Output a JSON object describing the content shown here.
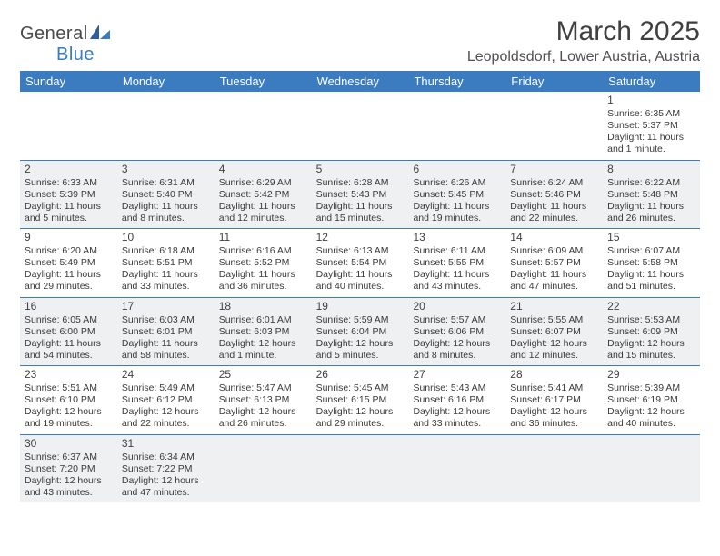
{
  "logo": {
    "text1": "General",
    "text2": "Blue"
  },
  "title": "March 2025",
  "location": "Leopoldsdorf, Lower Austria, Austria",
  "colors": {
    "header_bg": "#3b7bbf",
    "header_text": "#ffffff",
    "shaded_bg": "#eef0f2",
    "rule": "#3b7bbf",
    "text": "#3a3a3a"
  },
  "day_headers": [
    "Sunday",
    "Monday",
    "Tuesday",
    "Wednesday",
    "Thursday",
    "Friday",
    "Saturday"
  ],
  "weeks": [
    [
      {
        "empty": true,
        "shaded": false
      },
      {
        "empty": true,
        "shaded": false
      },
      {
        "empty": true,
        "shaded": false
      },
      {
        "empty": true,
        "shaded": false
      },
      {
        "empty": true,
        "shaded": false
      },
      {
        "empty": true,
        "shaded": false
      },
      {
        "day": "1",
        "shaded": false,
        "sunrise": "Sunrise: 6:35 AM",
        "sunset": "Sunset: 5:37 PM",
        "daylight": "Daylight: 11 hours and 1 minute."
      }
    ],
    [
      {
        "day": "2",
        "shaded": true,
        "sunrise": "Sunrise: 6:33 AM",
        "sunset": "Sunset: 5:39 PM",
        "daylight": "Daylight: 11 hours and 5 minutes."
      },
      {
        "day": "3",
        "shaded": true,
        "sunrise": "Sunrise: 6:31 AM",
        "sunset": "Sunset: 5:40 PM",
        "daylight": "Daylight: 11 hours and 8 minutes."
      },
      {
        "day": "4",
        "shaded": true,
        "sunrise": "Sunrise: 6:29 AM",
        "sunset": "Sunset: 5:42 PM",
        "daylight": "Daylight: 11 hours and 12 minutes."
      },
      {
        "day": "5",
        "shaded": true,
        "sunrise": "Sunrise: 6:28 AM",
        "sunset": "Sunset: 5:43 PM",
        "daylight": "Daylight: 11 hours and 15 minutes."
      },
      {
        "day": "6",
        "shaded": true,
        "sunrise": "Sunrise: 6:26 AM",
        "sunset": "Sunset: 5:45 PM",
        "daylight": "Daylight: 11 hours and 19 minutes."
      },
      {
        "day": "7",
        "shaded": true,
        "sunrise": "Sunrise: 6:24 AM",
        "sunset": "Sunset: 5:46 PM",
        "daylight": "Daylight: 11 hours and 22 minutes."
      },
      {
        "day": "8",
        "shaded": true,
        "sunrise": "Sunrise: 6:22 AM",
        "sunset": "Sunset: 5:48 PM",
        "daylight": "Daylight: 11 hours and 26 minutes."
      }
    ],
    [
      {
        "day": "9",
        "shaded": false,
        "sunrise": "Sunrise: 6:20 AM",
        "sunset": "Sunset: 5:49 PM",
        "daylight": "Daylight: 11 hours and 29 minutes."
      },
      {
        "day": "10",
        "shaded": false,
        "sunrise": "Sunrise: 6:18 AM",
        "sunset": "Sunset: 5:51 PM",
        "daylight": "Daylight: 11 hours and 33 minutes."
      },
      {
        "day": "11",
        "shaded": false,
        "sunrise": "Sunrise: 6:16 AM",
        "sunset": "Sunset: 5:52 PM",
        "daylight": "Daylight: 11 hours and 36 minutes."
      },
      {
        "day": "12",
        "shaded": false,
        "sunrise": "Sunrise: 6:13 AM",
        "sunset": "Sunset: 5:54 PM",
        "daylight": "Daylight: 11 hours and 40 minutes."
      },
      {
        "day": "13",
        "shaded": false,
        "sunrise": "Sunrise: 6:11 AM",
        "sunset": "Sunset: 5:55 PM",
        "daylight": "Daylight: 11 hours and 43 minutes."
      },
      {
        "day": "14",
        "shaded": false,
        "sunrise": "Sunrise: 6:09 AM",
        "sunset": "Sunset: 5:57 PM",
        "daylight": "Daylight: 11 hours and 47 minutes."
      },
      {
        "day": "15",
        "shaded": false,
        "sunrise": "Sunrise: 6:07 AM",
        "sunset": "Sunset: 5:58 PM",
        "daylight": "Daylight: 11 hours and 51 minutes."
      }
    ],
    [
      {
        "day": "16",
        "shaded": true,
        "sunrise": "Sunrise: 6:05 AM",
        "sunset": "Sunset: 6:00 PM",
        "daylight": "Daylight: 11 hours and 54 minutes."
      },
      {
        "day": "17",
        "shaded": true,
        "sunrise": "Sunrise: 6:03 AM",
        "sunset": "Sunset: 6:01 PM",
        "daylight": "Daylight: 11 hours and 58 minutes."
      },
      {
        "day": "18",
        "shaded": true,
        "sunrise": "Sunrise: 6:01 AM",
        "sunset": "Sunset: 6:03 PM",
        "daylight": "Daylight: 12 hours and 1 minute."
      },
      {
        "day": "19",
        "shaded": true,
        "sunrise": "Sunrise: 5:59 AM",
        "sunset": "Sunset: 6:04 PM",
        "daylight": "Daylight: 12 hours and 5 minutes."
      },
      {
        "day": "20",
        "shaded": true,
        "sunrise": "Sunrise: 5:57 AM",
        "sunset": "Sunset: 6:06 PM",
        "daylight": "Daylight: 12 hours and 8 minutes."
      },
      {
        "day": "21",
        "shaded": true,
        "sunrise": "Sunrise: 5:55 AM",
        "sunset": "Sunset: 6:07 PM",
        "daylight": "Daylight: 12 hours and 12 minutes."
      },
      {
        "day": "22",
        "shaded": true,
        "sunrise": "Sunrise: 5:53 AM",
        "sunset": "Sunset: 6:09 PM",
        "daylight": "Daylight: 12 hours and 15 minutes."
      }
    ],
    [
      {
        "day": "23",
        "shaded": false,
        "sunrise": "Sunrise: 5:51 AM",
        "sunset": "Sunset: 6:10 PM",
        "daylight": "Daylight: 12 hours and 19 minutes."
      },
      {
        "day": "24",
        "shaded": false,
        "sunrise": "Sunrise: 5:49 AM",
        "sunset": "Sunset: 6:12 PM",
        "daylight": "Daylight: 12 hours and 22 minutes."
      },
      {
        "day": "25",
        "shaded": false,
        "sunrise": "Sunrise: 5:47 AM",
        "sunset": "Sunset: 6:13 PM",
        "daylight": "Daylight: 12 hours and 26 minutes."
      },
      {
        "day": "26",
        "shaded": false,
        "sunrise": "Sunrise: 5:45 AM",
        "sunset": "Sunset: 6:15 PM",
        "daylight": "Daylight: 12 hours and 29 minutes."
      },
      {
        "day": "27",
        "shaded": false,
        "sunrise": "Sunrise: 5:43 AM",
        "sunset": "Sunset: 6:16 PM",
        "daylight": "Daylight: 12 hours and 33 minutes."
      },
      {
        "day": "28",
        "shaded": false,
        "sunrise": "Sunrise: 5:41 AM",
        "sunset": "Sunset: 6:17 PM",
        "daylight": "Daylight: 12 hours and 36 minutes."
      },
      {
        "day": "29",
        "shaded": false,
        "sunrise": "Sunrise: 5:39 AM",
        "sunset": "Sunset: 6:19 PM",
        "daylight": "Daylight: 12 hours and 40 minutes."
      }
    ],
    [
      {
        "day": "30",
        "shaded": true,
        "sunrise": "Sunrise: 6:37 AM",
        "sunset": "Sunset: 7:20 PM",
        "daylight": "Daylight: 12 hours and 43 minutes."
      },
      {
        "day": "31",
        "shaded": true,
        "sunrise": "Sunrise: 6:34 AM",
        "sunset": "Sunset: 7:22 PM",
        "daylight": "Daylight: 12 hours and 47 minutes."
      },
      {
        "empty": true,
        "shaded": true
      },
      {
        "empty": true,
        "shaded": true
      },
      {
        "empty": true,
        "shaded": true
      },
      {
        "empty": true,
        "shaded": true
      },
      {
        "empty": true,
        "shaded": true
      }
    ]
  ]
}
